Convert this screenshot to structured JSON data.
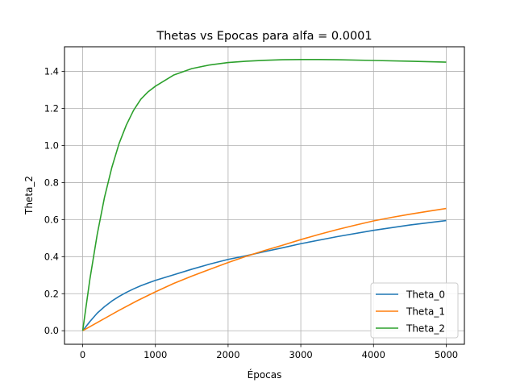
{
  "chart_data": {
    "type": "line",
    "title": "Thetas vs Epocas para alfa = 0.0001",
    "xlabel": "Épocas",
    "ylabel": "Theta_2",
    "xlim": [
      -250,
      5250
    ],
    "ylim": [
      -0.073,
      1.533
    ],
    "xticks": [
      0,
      1000,
      2000,
      3000,
      4000,
      5000
    ],
    "yticks": [
      0.0,
      0.2,
      0.4,
      0.6,
      0.8,
      1.0,
      1.2,
      1.4
    ],
    "xtick_labels": [
      "0",
      "1000",
      "2000",
      "3000",
      "4000",
      "5000"
    ],
    "ytick_labels": [
      "0.0",
      "0.2",
      "0.4",
      "0.6",
      "0.8",
      "1.0",
      "1.2",
      "1.4"
    ],
    "grid": true,
    "legend_position": "lower-right",
    "series": [
      {
        "name": "Theta_0",
        "color": "#1f77b4",
        "x": [
          0,
          100,
          200,
          300,
          400,
          500,
          600,
          700,
          800,
          900,
          1000,
          1250,
          1500,
          1750,
          2000,
          2250,
          2500,
          2750,
          3000,
          3500,
          4000,
          4500,
          5000
        ],
        "y": [
          0.0,
          0.05,
          0.095,
          0.13,
          0.16,
          0.185,
          0.207,
          0.226,
          0.243,
          0.258,
          0.272,
          0.302,
          0.332,
          0.36,
          0.385,
          0.405,
          0.427,
          0.448,
          0.47,
          0.508,
          0.542,
          0.571,
          0.595
        ]
      },
      {
        "name": "Theta_1",
        "color": "#ff7f0e",
        "x": [
          0,
          250,
          500,
          750,
          1000,
          1250,
          1500,
          1750,
          2000,
          2250,
          2500,
          2750,
          3000,
          3250,
          3500,
          3750,
          4000,
          4250,
          4500,
          4750,
          5000
        ],
        "y": [
          0.0,
          0.055,
          0.11,
          0.162,
          0.21,
          0.255,
          0.295,
          0.332,
          0.368,
          0.402,
          0.433,
          0.462,
          0.492,
          0.52,
          0.546,
          0.57,
          0.593,
          0.612,
          0.629,
          0.645,
          0.66
        ]
      },
      {
        "name": "Theta_2",
        "color": "#2ca02c",
        "x": [
          0,
          100,
          200,
          300,
          400,
          500,
          600,
          700,
          800,
          900,
          1000,
          1250,
          1500,
          1750,
          2000,
          2250,
          2500,
          2750,
          3000,
          3250,
          3500,
          4000,
          4500,
          5000
        ],
        "y": [
          0.0,
          0.28,
          0.52,
          0.72,
          0.88,
          1.01,
          1.11,
          1.19,
          1.25,
          1.29,
          1.32,
          1.38,
          1.415,
          1.435,
          1.448,
          1.455,
          1.46,
          1.463,
          1.464,
          1.464,
          1.463,
          1.459,
          1.455,
          1.45
        ]
      }
    ]
  }
}
